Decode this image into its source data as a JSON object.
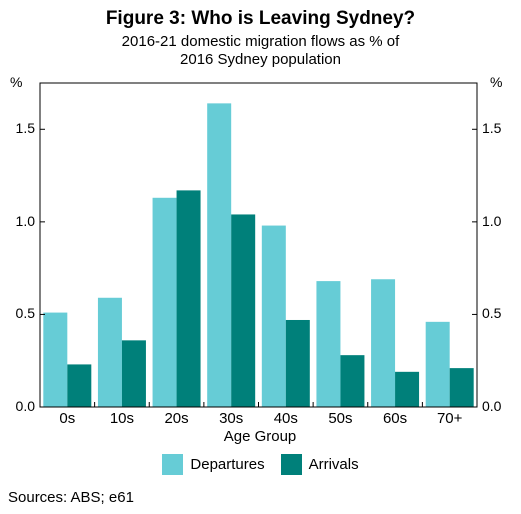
{
  "chart_data": {
    "type": "bar",
    "title": "Figure 3: Who is Leaving Sydney?",
    "subtitle_lines": [
      "2016-21 domestic migration flows as % of",
      "2016 Sydney population"
    ],
    "ylabel_left": "%",
    "ylabel_right": "%",
    "xlabel": "Age Group",
    "categories": [
      "0s",
      "10s",
      "20s",
      "30s",
      "40s",
      "50s",
      "60s",
      "70+"
    ],
    "series": [
      {
        "name": "Departures",
        "color": "#66ccd6",
        "values": [
          0.51,
          0.59,
          1.13,
          1.64,
          0.98,
          0.68,
          0.69,
          0.46
        ]
      },
      {
        "name": "Arrivals",
        "color": "#00807a",
        "values": [
          0.23,
          0.36,
          1.17,
          1.04,
          0.47,
          0.28,
          0.19,
          0.21
        ]
      }
    ],
    "ylim": [
      0,
      1.75
    ],
    "yticks": [
      "0.0",
      "0.5",
      "1.0",
      "1.5"
    ],
    "grid": false,
    "legend": "bottom-center",
    "source": "Sources: ABS; e61"
  }
}
